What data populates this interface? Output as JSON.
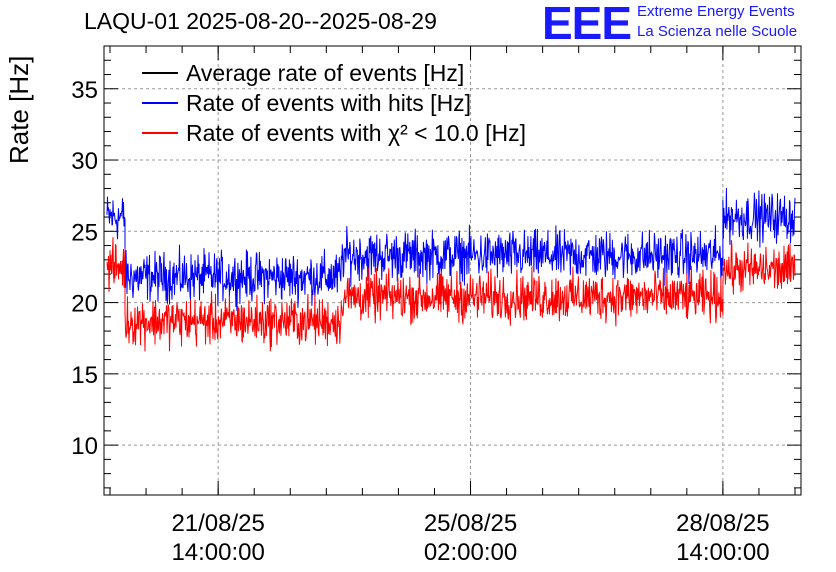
{
  "header": {
    "title": "LAQU-01 2025-08-20--2025-08-29",
    "logo_text": "EEE",
    "logo_line1": "Extreme Energy Events",
    "logo_line2": "La Scienza nelle Scuole"
  },
  "chart_data": {
    "type": "line",
    "ylabel": "Rate [Hz]",
    "ylim": [
      6.5,
      38
    ],
    "yticks": [
      10,
      15,
      20,
      25,
      30,
      35
    ],
    "grid": true,
    "legend_position": "top-left",
    "xlim": [
      "2025-08-20 00:00",
      "2025-08-29 16:00"
    ],
    "x_tick_labels": [
      {
        "date": "21/08/25",
        "time": "14:00:00"
      },
      {
        "date": "25/08/25",
        "time": "02:00:00"
      },
      {
        "date": "28/08/25",
        "time": "14:00:00"
      }
    ],
    "series": [
      {
        "name": "Average rate of events [Hz]",
        "color": "#000000",
        "segments": []
      },
      {
        "name": "Rate of events with hits [Hz]",
        "color": "#0000ff",
        "segments": [
          {
            "start": "2025-08-20 01:00",
            "end": "2025-08-20 07:00",
            "value": 26.0,
            "spread": 1.2
          },
          {
            "start": "2025-08-20 07:00",
            "end": "2025-08-23 07:00",
            "value": 21.8,
            "spread": 1.2
          },
          {
            "start": "2025-08-23 07:00",
            "end": "2025-08-28 14:00",
            "value": 23.3,
            "spread": 1.2
          },
          {
            "start": "2025-08-28 14:00",
            "end": "2025-08-29 14:00",
            "value": 26.0,
            "spread": 1.2
          }
        ]
      },
      {
        "name": "Rate of events with χ² < 10.0 [Hz]",
        "color": "#ff0000",
        "segments": [
          {
            "start": "2025-08-20 01:00",
            "end": "2025-08-20 07:00",
            "value": 22.5,
            "spread": 1.2
          },
          {
            "start": "2025-08-20 07:00",
            "end": "2025-08-23 07:00",
            "value": 18.7,
            "spread": 1.2
          },
          {
            "start": "2025-08-23 07:00",
            "end": "2025-08-28 14:00",
            "value": 20.4,
            "spread": 1.2
          },
          {
            "start": "2025-08-28 14:00",
            "end": "2025-08-29 14:00",
            "value": 22.3,
            "spread": 1.2
          }
        ]
      }
    ]
  }
}
